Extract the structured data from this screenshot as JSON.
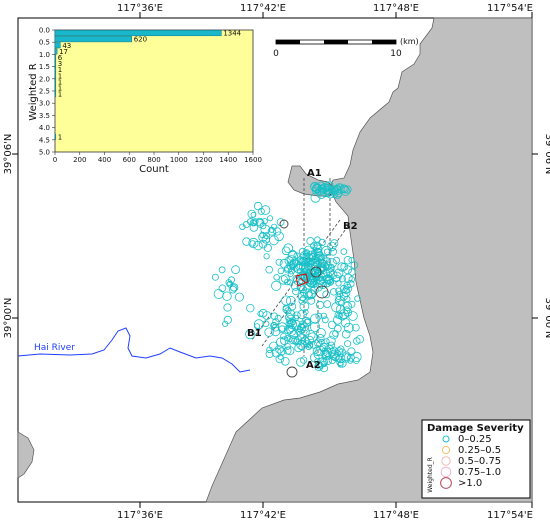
{
  "map": {
    "lon_ticks": [
      "117°36'E",
      "117°42'E",
      "117°48'E",
      "117°54'E"
    ],
    "lat_ticks": [
      "39°06'N",
      "39°00'N"
    ],
    "river_label": "Hai River",
    "scale_bar": {
      "start_label": "0",
      "end_label": "10",
      "unit": "(km)"
    },
    "sections": [
      "A1",
      "A2",
      "B1",
      "B2"
    ],
    "colors": {
      "land": "#bfbfbf",
      "water": "#ffffff",
      "river": "#1f3fff",
      "cyan": "#18c0c7",
      "dark_ring": "#444444",
      "red": "#e00000"
    }
  },
  "legend": {
    "title": "Damage Severity",
    "side_label": "Weighted_R",
    "items": [
      {
        "label": "0–0.25",
        "color": "#18c0c7"
      },
      {
        "label": "0.25–0.5",
        "color": "#f2c36a"
      },
      {
        "label": "0.5–0.75",
        "color": "#f3bcb5"
      },
      {
        "label": "0.75–1.0",
        "color": "#f3b7d3"
      },
      {
        "label": ">1.0",
        "color": "#b64a5b"
      }
    ]
  },
  "chart_data": {
    "type": "bar",
    "orientation": "horizontal",
    "xlabel": "Count",
    "ylabel": "Weighted R",
    "xlim": [
      0,
      1600
    ],
    "x_ticks": [
      "0",
      "200",
      "400",
      "600",
      "800",
      "1000",
      "1200",
      "1400",
      "1600"
    ],
    "y_ticks": [
      "0.0",
      "0.5",
      "1.0",
      "1.5",
      "2.0",
      "2.5",
      "3.0",
      "3.5",
      "4.0",
      "4.5",
      "5.0"
    ],
    "categories": [
      "0.0",
      "0.25",
      "0.5",
      "0.75",
      "1.0",
      "1.25",
      "1.5",
      "1.75",
      "2.0",
      "2.25",
      "2.5",
      "4.25"
    ],
    "values": [
      1344,
      620,
      43,
      17,
      6,
      3,
      1,
      1,
      1,
      1,
      1,
      1
    ],
    "bar_color": "#18b7cc",
    "background": "#ffff99"
  }
}
